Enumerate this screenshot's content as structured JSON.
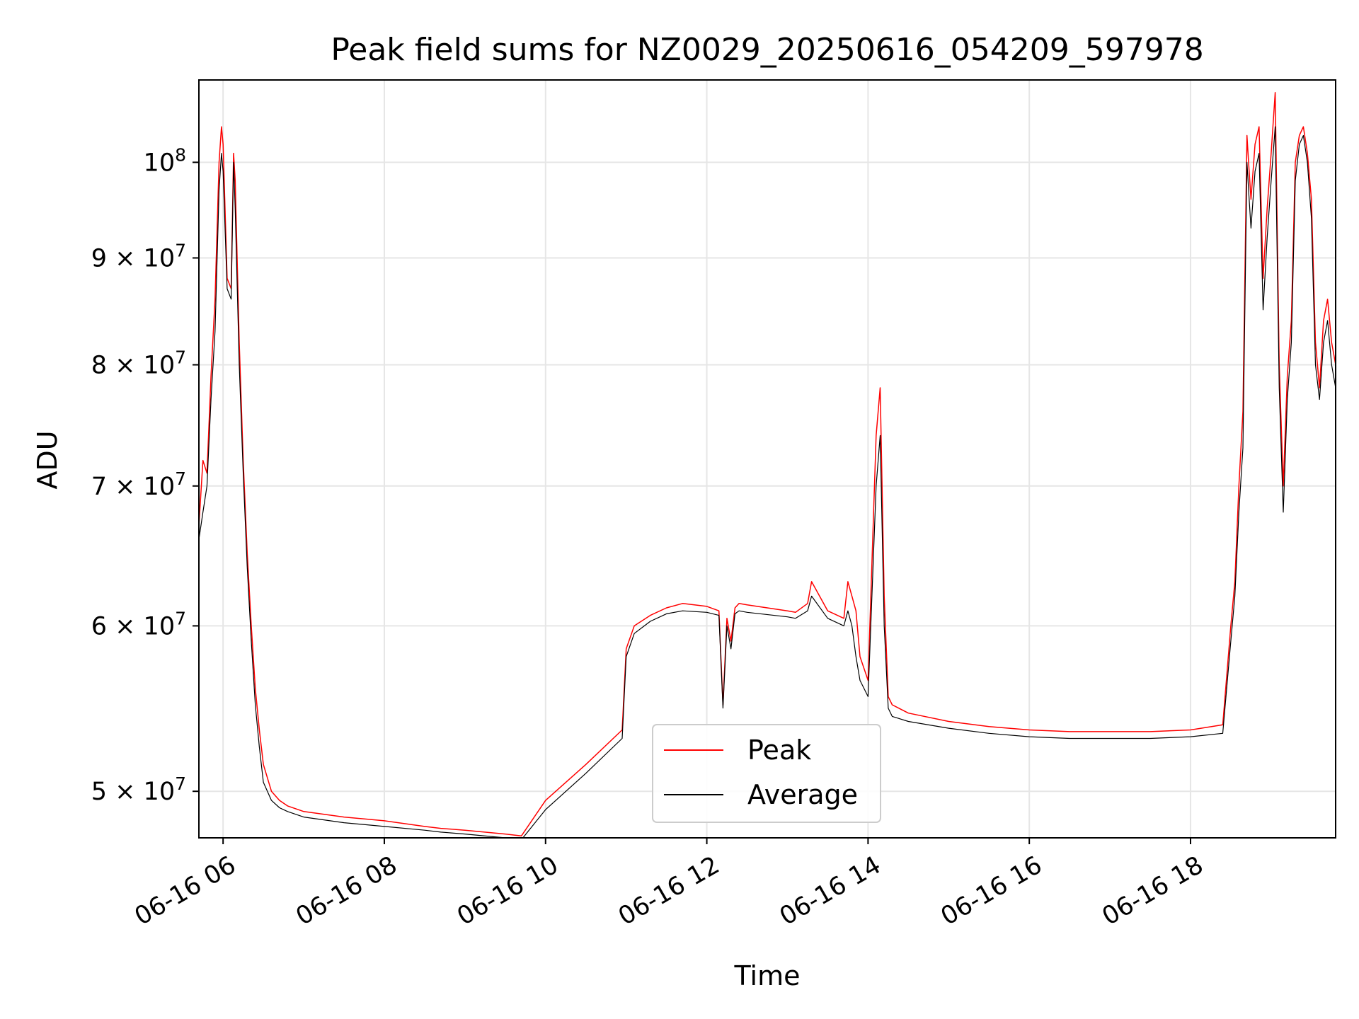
{
  "chart_data": {
    "type": "line",
    "title": "Peak field sums for NZ0029_20250616_054209_597978",
    "xlabel": "Time",
    "ylabel": "ADU",
    "yscale": "log",
    "xlim": [
      5.7,
      19.8
    ],
    "ylim": [
      47500000,
      109500000
    ],
    "grid": true,
    "legend_position": "lower center",
    "x_ticks": [
      {
        "value": 6,
        "label": "06-16 06"
      },
      {
        "value": 8,
        "label": "06-16 08"
      },
      {
        "value": 10,
        "label": "06-16 10"
      },
      {
        "value": 12,
        "label": "06-16 12"
      },
      {
        "value": 14,
        "label": "06-16 14"
      },
      {
        "value": 16,
        "label": "06-16 16"
      },
      {
        "value": 18,
        "label": "06-16 18"
      }
    ],
    "y_ticks": [
      {
        "value": 50000000,
        "mantissa": "5",
        "base": "10",
        "exp": "7"
      },
      {
        "value": 60000000,
        "mantissa": "6",
        "base": "10",
        "exp": "7"
      },
      {
        "value": 70000000,
        "mantissa": "7",
        "base": "10",
        "exp": "7"
      },
      {
        "value": 80000000,
        "mantissa": "8",
        "base": "10",
        "exp": "7"
      },
      {
        "value": 90000000,
        "mantissa": "9",
        "base": "10",
        "exp": "7"
      },
      {
        "value": 100000000,
        "mantissa": "",
        "base": "10",
        "exp": "8"
      }
    ],
    "series": [
      {
        "name": "Peak",
        "color": "#ff0000",
        "x": [
          5.7,
          5.75,
          5.8,
          5.85,
          5.9,
          5.95,
          5.98,
          6.0,
          6.05,
          6.1,
          6.13,
          6.15,
          6.2,
          6.25,
          6.3,
          6.35,
          6.4,
          6.45,
          6.5,
          6.6,
          6.7,
          6.8,
          7.0,
          7.5,
          8.0,
          8.5,
          8.7,
          9.0,
          9.5,
          9.7,
          10.0,
          10.5,
          10.95,
          11.0,
          11.1,
          11.3,
          11.5,
          11.7,
          12.0,
          12.15,
          12.2,
          12.25,
          12.3,
          12.35,
          12.4,
          12.5,
          13.0,
          13.1,
          13.25,
          13.3,
          13.5,
          13.7,
          13.75,
          13.8,
          13.85,
          13.9,
          14.0,
          14.1,
          14.15,
          14.2,
          14.25,
          14.3,
          14.5,
          15.0,
          15.5,
          16.0,
          16.5,
          17.0,
          17.5,
          18.0,
          18.4,
          18.5,
          18.55,
          18.6,
          18.65,
          18.7,
          18.72,
          18.75,
          18.8,
          18.85,
          18.9,
          18.95,
          19.0,
          19.05,
          19.1,
          19.15,
          19.2,
          19.25,
          19.3,
          19.35,
          19.4,
          19.45,
          19.5,
          19.55,
          19.6,
          19.65,
          19.7,
          19.75,
          19.8
        ],
        "y": [
          67000000,
          72000000,
          71000000,
          79000000,
          86000000,
          100000000,
          104000000,
          102000000,
          88000000,
          87000000,
          101000000,
          98000000,
          82000000,
          72000000,
          65000000,
          60000000,
          56000000,
          53500000,
          51500000,
          50000000,
          49500000,
          49200000,
          48900000,
          48600000,
          48400000,
          48100000,
          48000000,
          47900000,
          47700000,
          47600000,
          49500000,
          51500000,
          53500000,
          58500000,
          60000000,
          60700000,
          61200000,
          61500000,
          61300000,
          61000000,
          55000000,
          60500000,
          59000000,
          61200000,
          61500000,
          61400000,
          61000000,
          60900000,
          61500000,
          63000000,
          61000000,
          60500000,
          63000000,
          62000000,
          61000000,
          58000000,
          56500000,
          74000000,
          78000000,
          62000000,
          55500000,
          55000000,
          54500000,
          54000000,
          53700000,
          53500000,
          53400000,
          53400000,
          53400000,
          53500000,
          53800000,
          60000000,
          63000000,
          70000000,
          76000000,
          103000000,
          100000000,
          96000000,
          102000000,
          104000000,
          88000000,
          95000000,
          101000000,
          108000000,
          80000000,
          70000000,
          79000000,
          84000000,
          100000000,
          103000000,
          104000000,
          101000000,
          96000000,
          82000000,
          78000000,
          84000000,
          86000000,
          82000000,
          80000000
        ],
        "line_width": 1.5
      },
      {
        "name": "Average",
        "color": "#000000",
        "x": [
          5.7,
          5.75,
          5.8,
          5.85,
          5.9,
          5.95,
          5.98,
          6.0,
          6.05,
          6.1,
          6.13,
          6.15,
          6.2,
          6.25,
          6.3,
          6.35,
          6.4,
          6.45,
          6.5,
          6.6,
          6.7,
          6.8,
          7.0,
          7.5,
          8.0,
          8.5,
          8.7,
          9.0,
          9.5,
          9.7,
          10.0,
          10.5,
          10.95,
          11.0,
          11.1,
          11.3,
          11.5,
          11.7,
          12.0,
          12.15,
          12.2,
          12.25,
          12.3,
          12.35,
          12.4,
          12.5,
          13.0,
          13.1,
          13.25,
          13.3,
          13.5,
          13.7,
          13.75,
          13.8,
          13.85,
          13.9,
          14.0,
          14.1,
          14.15,
          14.2,
          14.25,
          14.3,
          14.5,
          15.0,
          15.5,
          16.0,
          16.5,
          17.0,
          17.5,
          18.0,
          18.4,
          18.5,
          18.55,
          18.6,
          18.65,
          18.7,
          18.72,
          18.75,
          18.8,
          18.85,
          18.9,
          18.95,
          19.0,
          19.05,
          19.1,
          19.15,
          19.2,
          19.25,
          19.3,
          19.35,
          19.4,
          19.45,
          19.5,
          19.55,
          19.6,
          19.65,
          19.7,
          19.75,
          19.8
        ],
        "y": [
          66000000,
          68000000,
          70000000,
          77000000,
          83000000,
          97000000,
          101000000,
          99000000,
          87000000,
          86000000,
          100000000,
          95000000,
          80000000,
          71000000,
          64000000,
          59000000,
          55000000,
          52500000,
          50500000,
          49500000,
          49100000,
          48900000,
          48600000,
          48300000,
          48100000,
          47900000,
          47800000,
          47700000,
          47500000,
          47400000,
          49000000,
          51000000,
          53000000,
          58000000,
          59500000,
          60300000,
          60800000,
          61000000,
          60900000,
          60700000,
          54800000,
          60000000,
          58500000,
          60800000,
          61000000,
          60900000,
          60600000,
          60500000,
          61000000,
          62000000,
          60500000,
          60000000,
          61000000,
          60000000,
          58000000,
          56500000,
          55500000,
          70000000,
          74000000,
          60000000,
          54800000,
          54300000,
          54000000,
          53600000,
          53300000,
          53100000,
          53000000,
          53000000,
          53000000,
          53100000,
          53300000,
          59000000,
          62000000,
          68000000,
          73000000,
          100000000,
          97000000,
          93000000,
          99000000,
          101000000,
          85000000,
          92000000,
          98000000,
          104000000,
          78000000,
          68000000,
          77000000,
          82000000,
          98000000,
          102000000,
          103000000,
          100000000,
          94000000,
          80000000,
          77000000,
          82000000,
          84000000,
          80000000,
          78000000
        ],
        "line_width": 1.2
      }
    ]
  }
}
